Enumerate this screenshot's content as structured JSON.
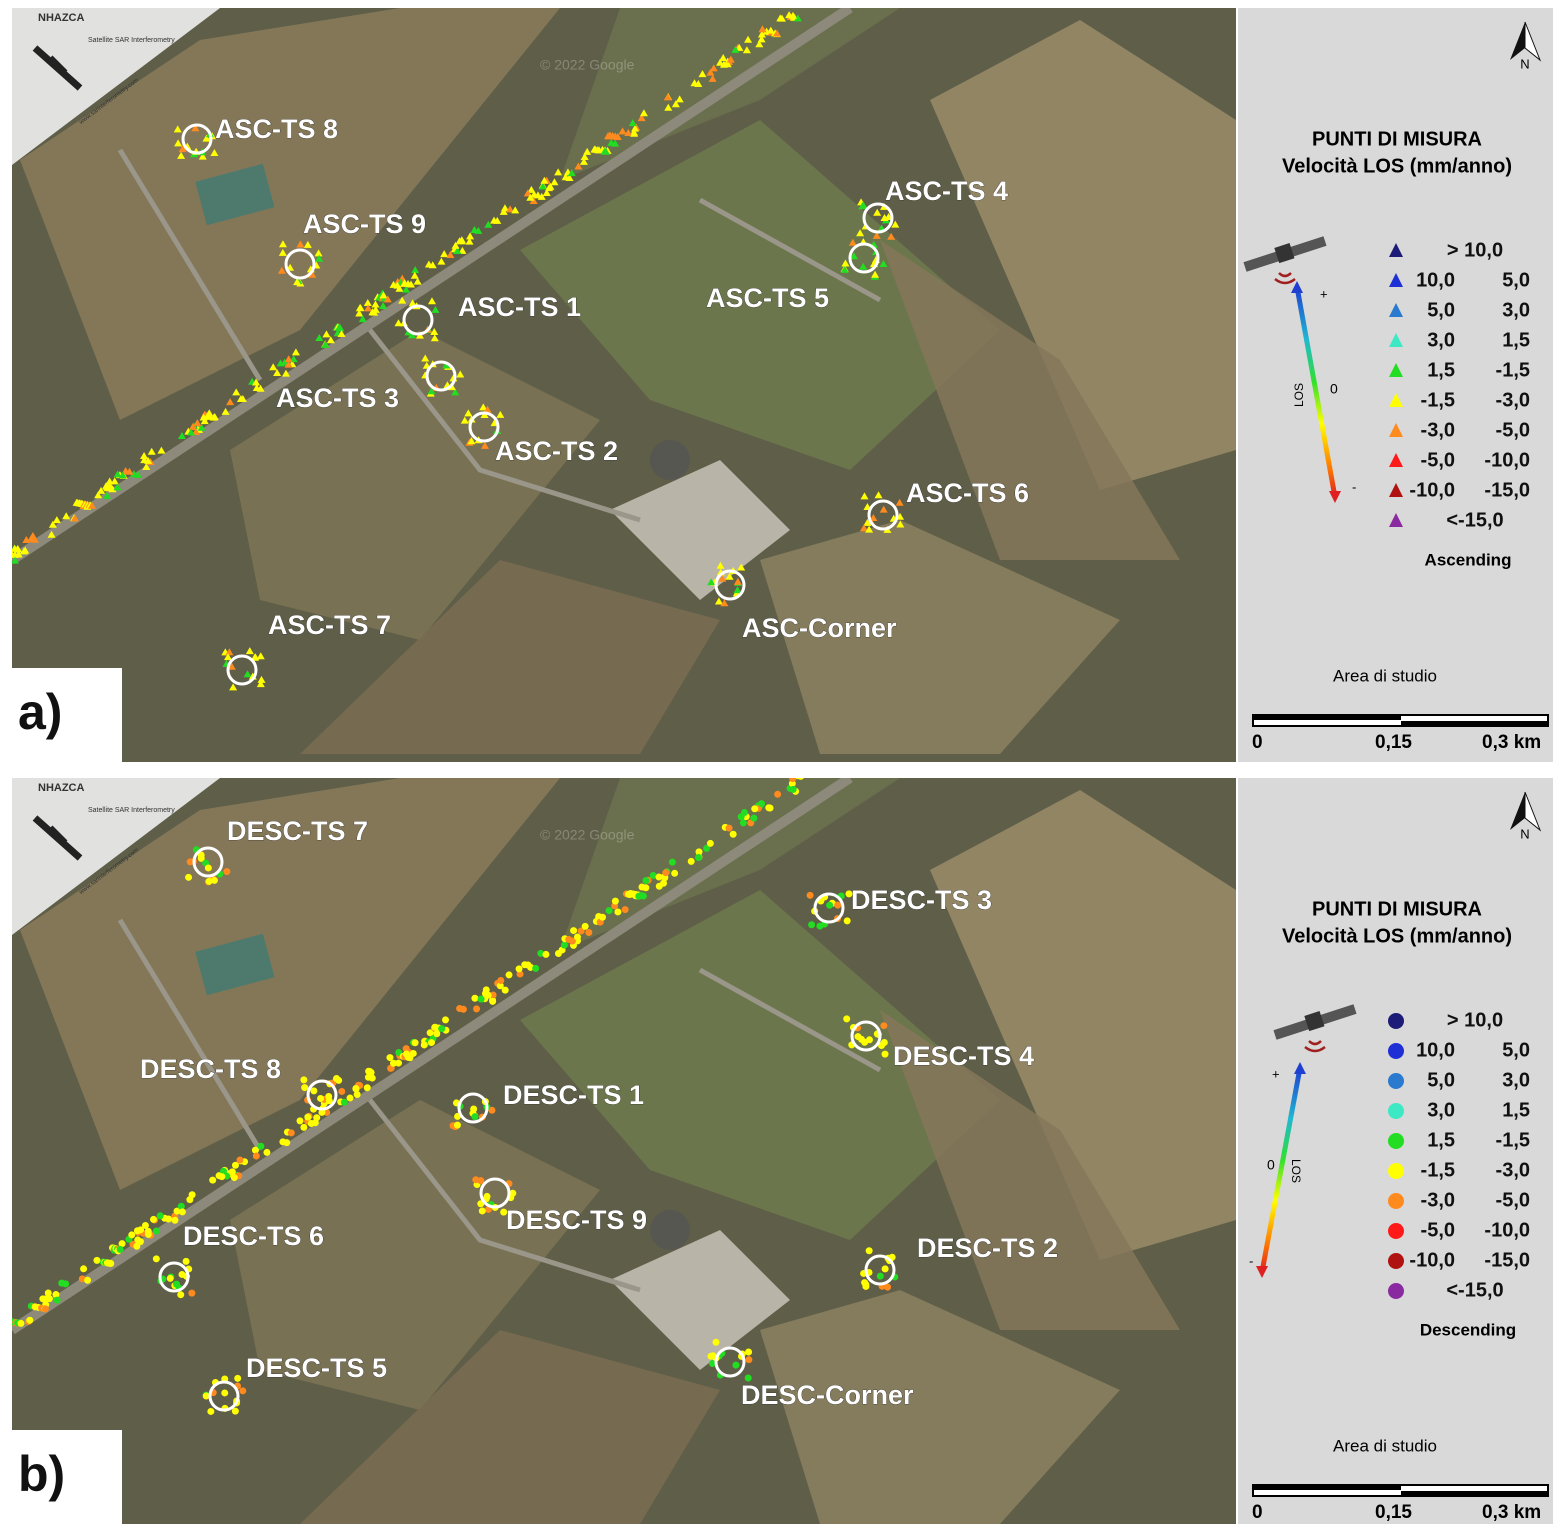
{
  "panels": [
    {
      "panel_label": "a)",
      "logo": {
        "name": "NHAZCA",
        "tagline": "Satellite SAR Interferometry",
        "url": "www.sarinterferometry.com"
      },
      "watermark": "© 2022 Google",
      "points": [
        "ASC-TS 8",
        "ASC-TS 9",
        "ASC-TS 1",
        "ASC-TS 3",
        "ASC-TS 2",
        "ASC-TS 4",
        "ASC-TS 5",
        "ASC-TS 6",
        "ASC-TS 7",
        "ASC-Corner"
      ],
      "legend": {
        "north": "N",
        "title": "PUNTI DI MISURA",
        "subtitle": "Velocità LOS (mm/anno)",
        "los": {
          "label": "LOS",
          "plus": "+",
          "zero": "0",
          "minus": "-"
        },
        "marker": "triangle",
        "classes": [
          {
            "color": "#1c1c78",
            "labels": [
              "> 10,0"
            ]
          },
          {
            "color": "#1f2fd6",
            "labels": [
              "10,0",
              "5,0"
            ]
          },
          {
            "color": "#2a7ad0",
            "labels": [
              "5,0",
              "3,0"
            ]
          },
          {
            "color": "#3de8c4",
            "labels": [
              "3,0",
              "1,5"
            ]
          },
          {
            "color": "#22dd22",
            "labels": [
              "1,5",
              "-1,5"
            ]
          },
          {
            "color": "#ffff00",
            "labels": [
              "-1,5",
              "-3,0"
            ]
          },
          {
            "color": "#ff8a1e",
            "labels": [
              "-3,0",
              "-5,0"
            ]
          },
          {
            "color": "#ff1a1a",
            "labels": [
              "-5,0",
              "-10,0"
            ]
          },
          {
            "color": "#b01212",
            "labels": [
              "-10,0",
              "-15,0"
            ]
          },
          {
            "color": "#8a2aa0",
            "labels": [
              "<-15,0"
            ]
          }
        ],
        "orbit": "Ascending",
        "study_area": "Area di studio",
        "scale": [
          "0",
          "0,15",
          "0,3 km"
        ]
      }
    },
    {
      "panel_label": "b)",
      "logo": {
        "name": "NHAZCA",
        "tagline": "Satellite SAR Interferometry",
        "url": "www.sarinterferometry.com"
      },
      "watermark": "© 2022 Google",
      "points": [
        "DESC-TS 7",
        "DESC-TS 3",
        "DESC-TS 8",
        "DESC-TS 1",
        "DESC-TS 4",
        "DESC-TS 9",
        "DESC-TS 6",
        "DESC-TS 2",
        "DESC-TS 5",
        "DESC-Corner"
      ],
      "legend": {
        "north": "N",
        "title": "PUNTI DI MISURA",
        "subtitle": "Velocità LOS (mm/anno)",
        "los": {
          "label": "LOS",
          "plus": "+",
          "zero": "0",
          "minus": "-"
        },
        "marker": "circle",
        "classes": [
          {
            "color": "#1c1c78",
            "labels": [
              "> 10,0"
            ]
          },
          {
            "color": "#1f2fd6",
            "labels": [
              "10,0",
              "5,0"
            ]
          },
          {
            "color": "#2a7ad0",
            "labels": [
              "5,0",
              "3,0"
            ]
          },
          {
            "color": "#3de8c4",
            "labels": [
              "3,0",
              "1,5"
            ]
          },
          {
            "color": "#22dd22",
            "labels": [
              "1,5",
              "-1,5"
            ]
          },
          {
            "color": "#ffff00",
            "labels": [
              "-1,5",
              "-3,0"
            ]
          },
          {
            "color": "#ff8a1e",
            "labels": [
              "-3,0",
              "-5,0"
            ]
          },
          {
            "color": "#ff1a1a",
            "labels": [
              "-5,0",
              "-10,0"
            ]
          },
          {
            "color": "#b01212",
            "labels": [
              "-10,0",
              "-15,0"
            ]
          },
          {
            "color": "#8a2aa0",
            "labels": [
              "<-15,0"
            ]
          }
        ],
        "orbit": "Descending",
        "study_area": "Area di studio",
        "scale": [
          "0",
          "0,15",
          "0,3 km"
        ]
      }
    }
  ]
}
